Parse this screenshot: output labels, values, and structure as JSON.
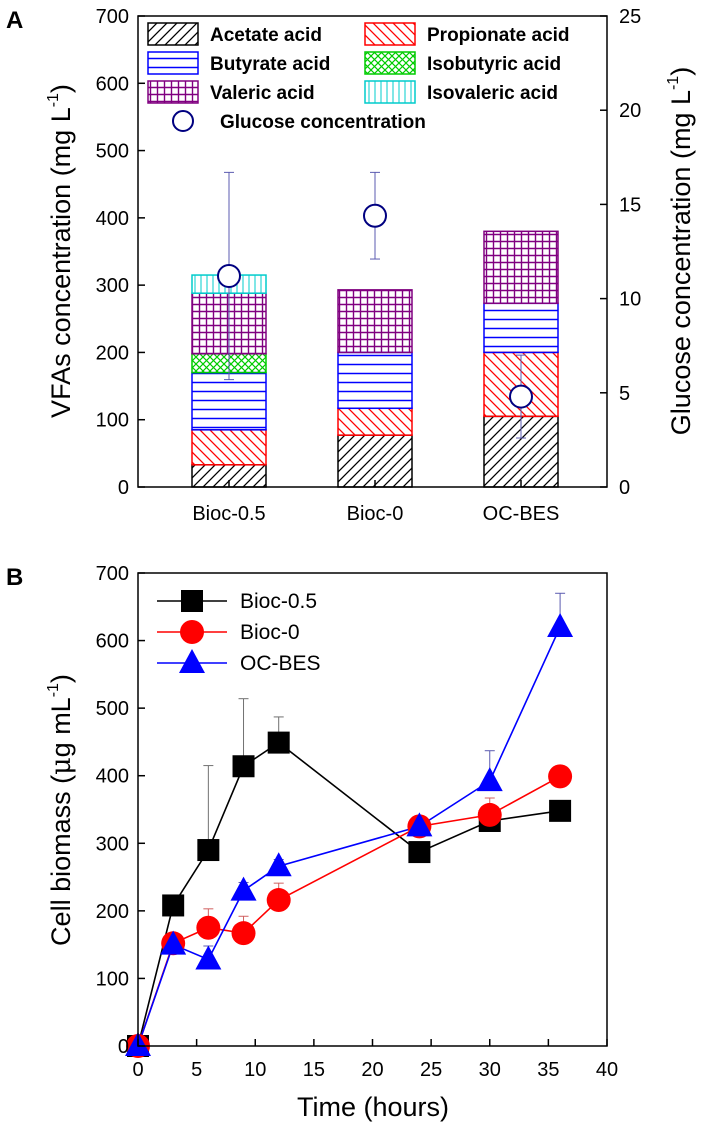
{
  "chart_data": [
    {
      "type": "bar",
      "panel_label": "A",
      "stacked": true,
      "categories": [
        "Bioc-0.5",
        "Bioc-0",
        "OC-BES"
      ],
      "ylabel": "VFAs concentration (mg L",
      "ylabel_sup": "-1",
      "ylabel_close": ")",
      "y2label": "Glucose concentration (mg L",
      "y2label_sup": "-1",
      "y2label_close": ")",
      "ylim": [
        0,
        700
      ],
      "yticks": [
        0,
        100,
        200,
        300,
        400,
        500,
        600,
        700
      ],
      "y2lim": [
        0,
        25
      ],
      "y2ticks": [
        0,
        5,
        10,
        15,
        20,
        25
      ],
      "series": [
        {
          "name": "Acetate acid",
          "values": [
            33,
            77,
            105
          ],
          "color": "#000000",
          "pattern": "diag-right"
        },
        {
          "name": "Propionate acid",
          "values": [
            52,
            40,
            95
          ],
          "color": "#ff0000",
          "pattern": "diag-left"
        },
        {
          "name": "Butyrate acid",
          "values": [
            85,
            83,
            73
          ],
          "color": "#0000ff",
          "pattern": "horizontal"
        },
        {
          "name": "Isobutyric acid",
          "values": [
            28,
            0,
            0
          ],
          "color": "#00cc00",
          "pattern": "cross"
        },
        {
          "name": "Valeric acid",
          "values": [
            90,
            93,
            107
          ],
          "color": "#800080",
          "pattern": "grid"
        },
        {
          "name": "Isovaleric acid",
          "values": [
            27,
            0,
            0
          ],
          "color": "#00cccc",
          "pattern": "vertical"
        }
      ],
      "glucose": {
        "name": "Glucose concentration",
        "values": [
          11.2,
          14.4,
          4.8
        ],
        "err_up": [
          5.5,
          2.3,
          2.2
        ],
        "err_down": [
          5.5,
          2.3,
          2.2
        ],
        "color": "#000080"
      },
      "legend_position": "top"
    },
    {
      "type": "line",
      "panel_label": "B",
      "xlabel": "Time (hours)",
      "ylabel_pre": "Cell biomass (",
      "ylabel_mu": "μ",
      "ylabel_unit": "g mL",
      "ylabel_sup": "-1",
      "ylabel_close": ")",
      "xlim": [
        0,
        40
      ],
      "xticks": [
        0,
        5,
        10,
        15,
        20,
        25,
        30,
        35,
        40
      ],
      "ylim": [
        0,
        700
      ],
      "yticks": [
        0,
        100,
        200,
        300,
        400,
        500,
        600,
        700
      ],
      "series": [
        {
          "name": "Bioc-0.5",
          "marker": "square",
          "color": "#000000",
          "x": [
            0,
            3,
            6,
            9,
            12,
            24,
            30,
            36
          ],
          "y": [
            0,
            208,
            290,
            414,
            449,
            287,
            333,
            348
          ],
          "err": [
            0,
            10,
            125,
            100,
            38,
            10,
            12,
            8
          ]
        },
        {
          "name": "Bioc-0",
          "marker": "circle",
          "color": "#ff0000",
          "x": [
            0,
            3,
            6,
            9,
            12,
            24,
            30,
            36
          ],
          "y": [
            0,
            152,
            175,
            167,
            216,
            325,
            342,
            399
          ],
          "err": [
            0,
            8,
            28,
            25,
            25,
            8,
            25,
            8
          ]
        },
        {
          "name": "OC-BES",
          "marker": "triangle",
          "color": "#0000ff",
          "x": [
            0,
            3,
            6,
            9,
            12,
            24,
            30,
            36
          ],
          "y": [
            0,
            150,
            128,
            230,
            266,
            325,
            392,
            620
          ],
          "err": [
            0,
            8,
            20,
            12,
            10,
            12,
            45,
            50
          ]
        }
      ],
      "legend_position": "top-left"
    }
  ]
}
